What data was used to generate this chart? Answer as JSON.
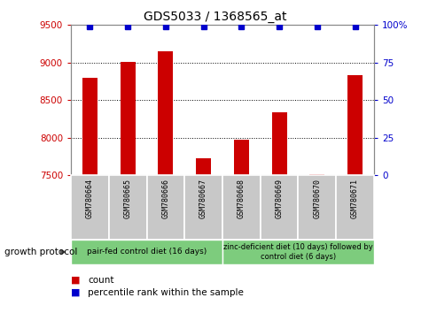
{
  "title": "GDS5033 / 1368565_at",
  "samples": [
    "GSM780664",
    "GSM780665",
    "GSM780666",
    "GSM780667",
    "GSM780668",
    "GSM780669",
    "GSM780670",
    "GSM780671"
  ],
  "counts": [
    8800,
    9010,
    9150,
    7730,
    7970,
    8340,
    7510,
    8830
  ],
  "percentiles": [
    99,
    99,
    99,
    99,
    99,
    99,
    99,
    99
  ],
  "ylim_left": [
    7500,
    9500
  ],
  "ylim_right": [
    0,
    100
  ],
  "yticks_left": [
    7500,
    8000,
    8500,
    9000,
    9500
  ],
  "yticks_right": [
    0,
    25,
    50,
    75,
    100
  ],
  "bar_color": "#cc0000",
  "dot_color": "#0000cc",
  "group1_count": 4,
  "group2_count": 4,
  "group1_label": "pair-fed control diet (16 days)",
  "group2_label": "zinc-deficient diet (10 days) followed by\ncontrol diet (6 days)",
  "group_label": "growth protocol",
  "group_color": "#7dcc7d",
  "tick_bg_color": "#c8c8c8",
  "legend_count_color": "#cc0000",
  "legend_pct_color": "#0000cc",
  "title_color": "#000000",
  "left_tick_color": "#cc0000",
  "right_tick_color": "#0000cc",
  "bar_width": 0.4,
  "dot_size": 4
}
